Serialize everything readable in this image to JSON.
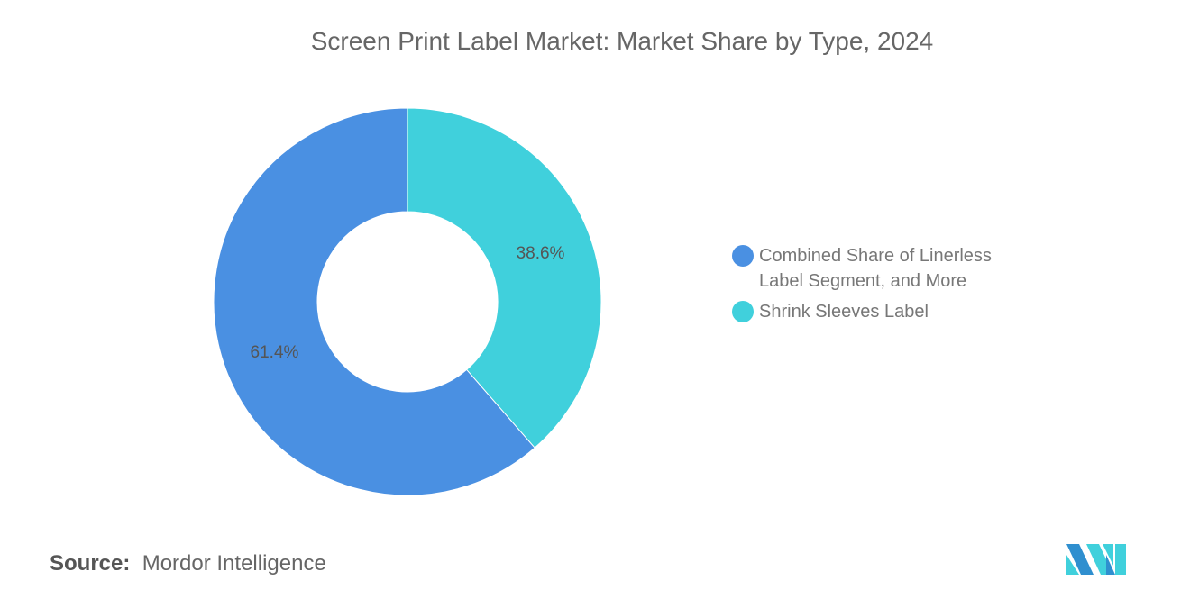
{
  "chart_data": {
    "type": "pie",
    "variant": "donut",
    "title": "Screen Print Label Market: Market Share by Type, 2024",
    "categories": [
      "Combined Share of Linerless Label Segment, and More",
      "Shrink Sleeves Label"
    ],
    "values": [
      61.4,
      38.6
    ],
    "labels": [
      "61.4%",
      "38.6%"
    ],
    "colors": [
      "#4a90e2",
      "#40d0dc"
    ],
    "legend_position": "right"
  },
  "legend": [
    {
      "label_line1": "Combined Share of Linerless",
      "label_line2": "Label Segment, and More"
    },
    {
      "label_line1": "Shrink Sleeves Label"
    }
  ],
  "source": {
    "prefix": "Source:",
    "text": "Mordor Intelligence"
  },
  "logo": {
    "name": "Mordor Intelligence logo",
    "colors": [
      "#2f8fcf",
      "#40d0dc"
    ]
  }
}
